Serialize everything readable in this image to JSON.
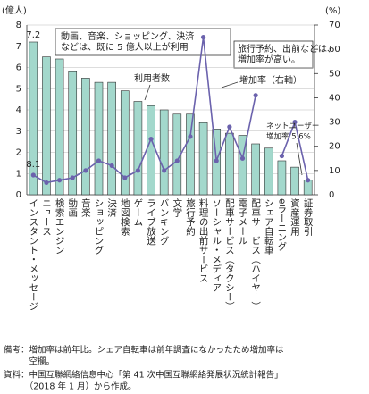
{
  "chart_data": {
    "type": "bar_line",
    "categories": [
      "インスタント・メッセージ",
      "ニュース",
      "検索エンジン",
      "動画",
      "音楽",
      "ショッピング",
      "決済",
      "地図検索",
      "ゲーム",
      "ライブ放送",
      "バンキング",
      "文学",
      "旅行予約",
      "料理の出前サービス",
      "ソーシャル・メディア",
      "配車サービス（タクシー）",
      "電子メール",
      "配車サービス（ハイヤー）",
      "シェア自転車",
      "eラーニング",
      "資産運用",
      "証券取引"
    ],
    "series": [
      {
        "name": "利用者数",
        "color": "#a3d8cc",
        "values": [
          7.2,
          6.5,
          6.4,
          5.8,
          5.5,
          5.3,
          5.3,
          4.9,
          4.4,
          4.2,
          4.0,
          3.8,
          3.8,
          3.4,
          3.1,
          2.9,
          2.8,
          2.4,
          2.2,
          1.6,
          1.3,
          0.7
        ]
      },
      {
        "name": "増加率（右軸）",
        "color": "#6b62ad",
        "axis": "y2",
        "values": [
          8.1,
          5,
          6,
          7,
          10,
          14,
          12,
          7,
          10,
          23,
          10,
          14,
          24,
          65,
          14,
          28,
          15,
          41,
          null,
          16,
          30,
          6
        ]
      }
    ],
    "y_unit": "(億人)",
    "y2_unit": "(%)",
    "ylim": [
      0,
      8
    ],
    "yticks": [
      0,
      1,
      2,
      3,
      4,
      5,
      6,
      7,
      8
    ],
    "y2lim": [
      0,
      70
    ],
    "y2ticks": [
      0,
      10,
      20,
      30,
      40,
      50,
      60,
      70
    ],
    "grid": true,
    "annotations": [
      [
        "動画、音楽、ショッピング、決済",
        "などは、既に 5 億人以上が利用"
      ],
      [
        "旅行予約、出前などは、",
        "増加率が高い。"
      ],
      [
        "ネットユーザー",
        "増加率 5.6%"
      ]
    ],
    "notes": [
      [
        "備考：増加率は前年比。シェア自転車は前年調査になかったため増加率は",
        "　　　空欄。"
      ],
      [
        "資料：中国互聯網絡信息中心「第 41 次中国互聯網絡発展状況統計報告」",
        "　　　（2018 年 1 月）から作成。"
      ]
    ]
  }
}
